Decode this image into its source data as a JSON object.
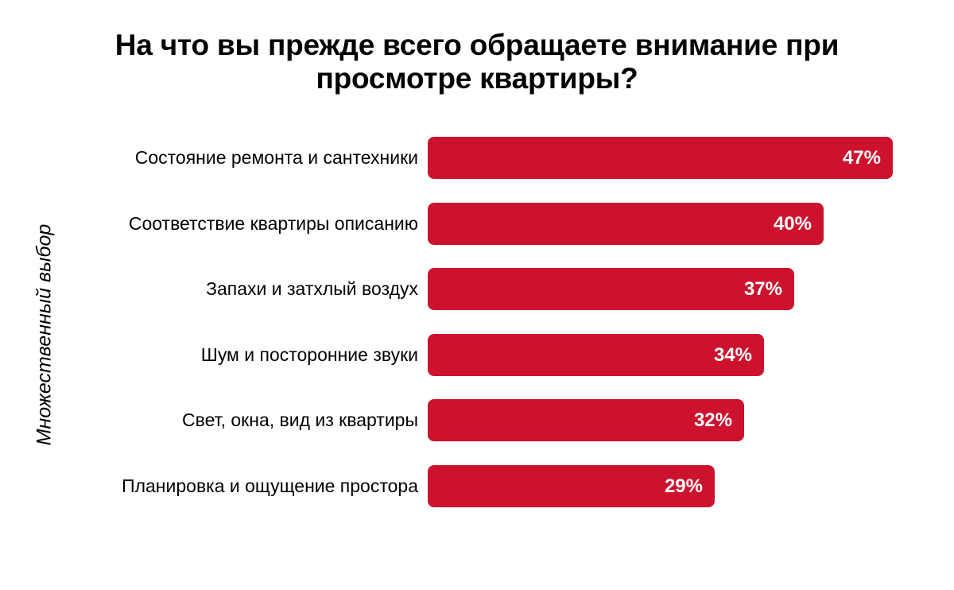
{
  "title": {
    "line1": "На что вы прежде всего обращаете внимание при",
    "line2": "просмотре квартиры?"
  },
  "side_note": "Множественный выбор",
  "colors": {
    "background": "#ffffff",
    "bar": "#cd122e",
    "title_text": "#000000",
    "label_text": "#000000",
    "value_text": "#ffffff"
  },
  "chart_data": {
    "type": "bar",
    "orientation": "horizontal",
    "title": "На что вы прежде всего обращаете внимание при просмотре квартиры?",
    "note": "Множественный выбор",
    "categories": [
      "Состояние ремонта и сантехники",
      "Соответствие квартиры описанию",
      "Запахи и затхлый воздух",
      "Шум и посторонние звуки",
      "Свет, окна, вид из квартиры",
      "Планировка и ощущение простора"
    ],
    "values": [
      47,
      40,
      37,
      34,
      32,
      29
    ],
    "value_suffix": "%",
    "data_labels": "inside-end",
    "grid": false,
    "legend": false,
    "axes_hidden": true,
    "bar_color": "#cd122e"
  }
}
